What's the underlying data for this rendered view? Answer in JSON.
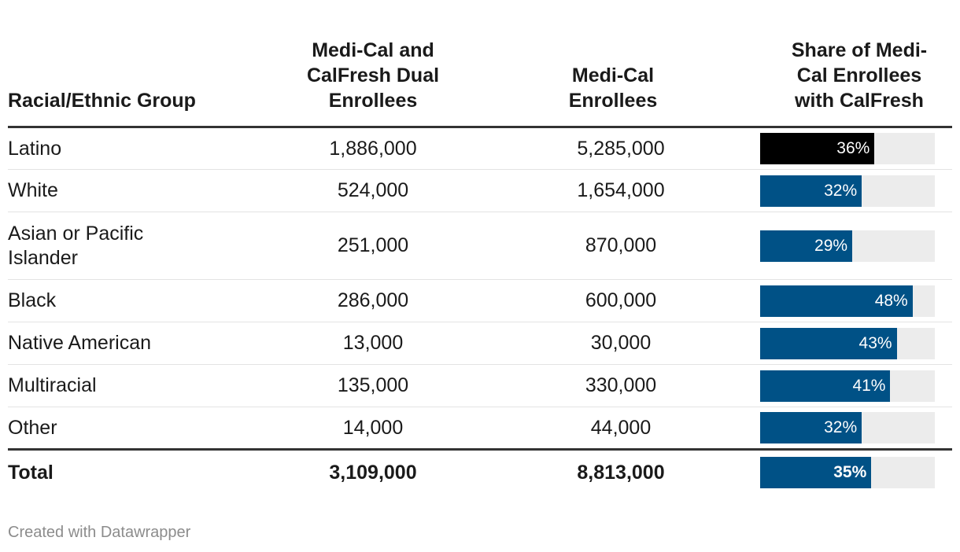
{
  "chart_data": {
    "type": "table",
    "columns": [
      "Racial/Ethnic Group",
      "Medi-Cal and CalFresh Dual Enrollees",
      "Medi-Cal Enrollees",
      "Share of Medi-Cal Enrollees with CalFresh"
    ],
    "header_lines": {
      "col2": [
        "Medi-Cal and",
        "CalFresh Dual",
        "Enrollees"
      ],
      "col3": [
        "Medi-Cal",
        "Enrollees"
      ],
      "col4": [
        "Share of Medi-",
        "Cal Enrollees",
        "with CalFresh"
      ]
    },
    "rows": [
      {
        "group": "Latino",
        "dual": "1,886,000",
        "medical": "5,285,000",
        "share": 36,
        "share_label": "36%",
        "highlight": true
      },
      {
        "group": "White",
        "dual": "524,000",
        "medical": "1,654,000",
        "share": 32,
        "share_label": "32%"
      },
      {
        "group_lines": [
          "Asian or Pacific",
          "Islander"
        ],
        "dual": "251,000",
        "medical": "870,000",
        "share": 29,
        "share_label": "29%"
      },
      {
        "group": "Black",
        "dual": "286,000",
        "medical": "600,000",
        "share": 48,
        "share_label": "48%"
      },
      {
        "group": "Native American",
        "dual": "13,000",
        "medical": "30,000",
        "share": 43,
        "share_label": "43%"
      },
      {
        "group": "Multiracial",
        "dual": "135,000",
        "medical": "330,000",
        "share": 41,
        "share_label": "41%"
      },
      {
        "group": "Other",
        "dual": "14,000",
        "medical": "44,000",
        "share": 32,
        "share_label": "32%"
      }
    ],
    "total": {
      "group": "Total",
      "dual": "3,109,000",
      "medical": "8,813,000",
      "share": 35,
      "share_label": "35%"
    },
    "bar_scale_max": 55,
    "colors": {
      "bar": "#005186",
      "highlight": "#000000",
      "track": "#ececec"
    }
  },
  "footer": "Created with Datawrapper"
}
